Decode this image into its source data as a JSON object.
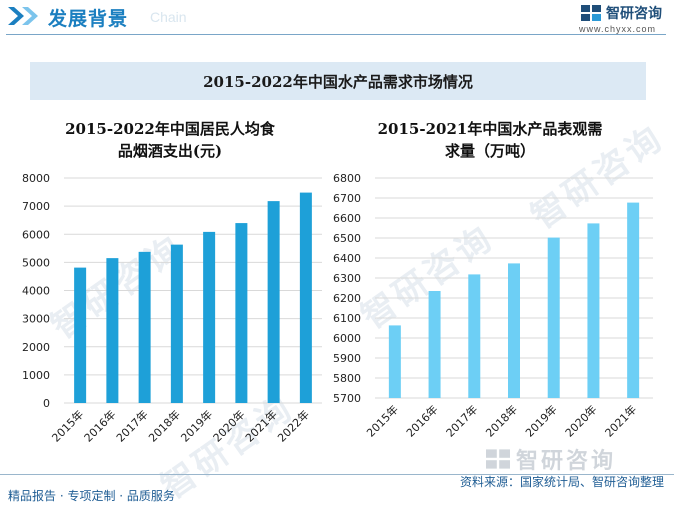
{
  "header": {
    "section_title": "发展背景",
    "section_subtitle": "Chain",
    "brand_name": "智研咨询",
    "brand_url": "www.chyxx.com"
  },
  "banner": {
    "title": "2015-2022年中国水产品需求市场情况"
  },
  "footer": {
    "source": "资料来源：国家统计局、智研咨询整理",
    "tagline": "精品报告 · 专项定制 · 品质服务",
    "logo_text": "智研咨询"
  },
  "watermark": {
    "text": "智研咨询"
  },
  "colors": {
    "left_bar": "#1ea0d8",
    "right_bar": "#6dcff5",
    "title": "#1b7fc0"
  },
  "chart_data": [
    {
      "type": "bar",
      "title_line1": "2015-2022年中国居民人均食",
      "title_line2": "品烟酒支出(元)",
      "categories": [
        "2015年",
        "2016年",
        "2017年",
        "2018年",
        "2019年",
        "2020年",
        "2021年",
        "2022年"
      ],
      "values": [
        4814,
        5151,
        5374,
        5631,
        6084,
        6397,
        7178,
        7481
      ],
      "ylim": [
        0,
        8000
      ],
      "yticks": [
        0,
        1000,
        2000,
        3000,
        4000,
        5000,
        6000,
        7000,
        8000
      ],
      "grid": true
    },
    {
      "type": "bar",
      "title_line1": "2015-2021年中国水产品表观需",
      "title_line2": "求量（万吨）",
      "categories": [
        "2015年",
        "2016年",
        "2017年",
        "2018年",
        "2019年",
        "2020年",
        "2021年"
      ],
      "values": [
        6063,
        6235,
        6318,
        6373,
        6502,
        6573,
        6677
      ],
      "ylim": [
        5700,
        6800
      ],
      "yticks": [
        5700,
        5800,
        5900,
        6000,
        6100,
        6200,
        6300,
        6400,
        6500,
        6600,
        6700,
        6800
      ],
      "grid": true
    }
  ]
}
